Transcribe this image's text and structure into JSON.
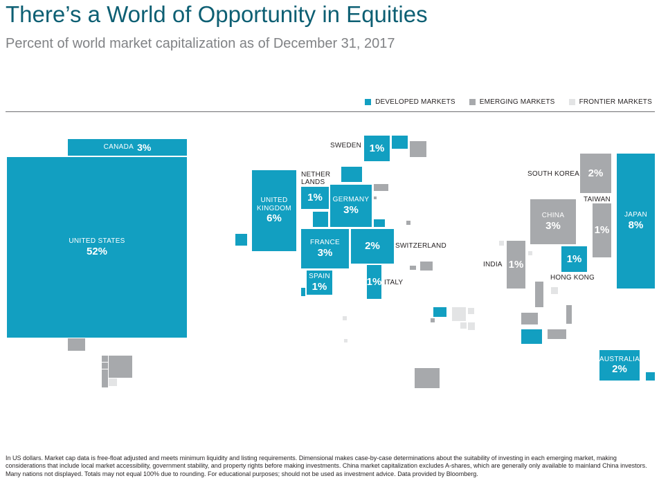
{
  "title": "There’s a World of Opportunity in Equities",
  "subtitle": "Percent of world market capitalization as of December 31, 2017",
  "legend": [
    {
      "label": "DEVELOPED MARKETS",
      "color": "#129fc1"
    },
    {
      "label": "EMERGING MARKETS",
      "color": "#a7a9ac"
    },
    {
      "label": "FRONTIER MARKETS",
      "color": "#e3e4e5"
    }
  ],
  "countries": {
    "us": {
      "name": "UNITED STATES",
      "pct": "52%"
    },
    "canada": {
      "name": "CANADA",
      "pct": "3%"
    },
    "uk": {
      "name": "UNITED KINGDOM",
      "pct": "6%"
    },
    "netherlands": {
      "name": "NETHER LANDS",
      "pct": "1%"
    },
    "germany": {
      "name": "GERMANY",
      "pct": "3%"
    },
    "sweden": {
      "name": "SWEDEN",
      "pct": "1%"
    },
    "france": {
      "name": "FRANCE",
      "pct": "3%"
    },
    "switzerland": {
      "name": "SWITZERLAND",
      "pct": "2%"
    },
    "spain": {
      "name": "SPAIN",
      "pct": "1%"
    },
    "italy": {
      "name": "ITALY",
      "pct": "1%"
    },
    "south_korea": {
      "name": "SOUTH KOREA",
      "pct": "2%"
    },
    "taiwan": {
      "name": "TAIWAN",
      "pct": "1%"
    },
    "china": {
      "name": "CHINA",
      "pct": "3%"
    },
    "japan": {
      "name": "JAPAN",
      "pct": "8%"
    },
    "india": {
      "name": "INDIA",
      "pct": "1%"
    },
    "hong_kong": {
      "name": "HONG KONG",
      "pct": "1%"
    },
    "australia": {
      "name": "AUSTRALIA",
      "pct": "2%"
    }
  },
  "footnote": "In US dollars. Market cap data is free-float adjusted and meets minimum liquidity and listing requirements. Dimensional makes case-by-case determinations about the suitability of investing in each emerging market, making considerations that include local market accessibility, government stability, and property rights before making investments. China market capitalization excludes A-shares, which are generally only available to mainland China investors. Many nations not displayed. Totals may not equal 100% due to rounding. For educational purposes; should not be used as investment advice. Data provided by Bloomberg."
}
